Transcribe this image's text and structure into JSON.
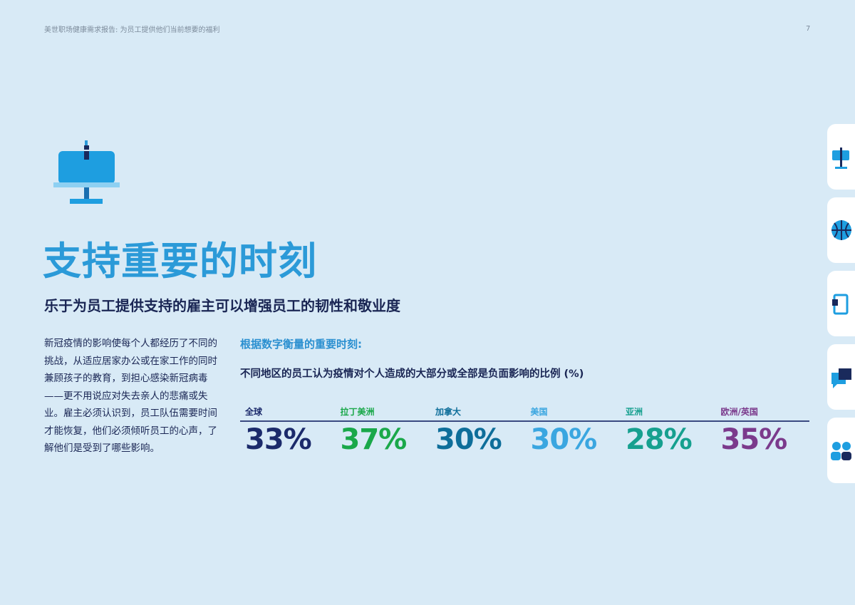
{
  "header": {
    "title": "美世职场健康需求报告: 为员工提供他们当前想要的福利",
    "page_number": "7"
  },
  "title": "支持重要的时刻",
  "subtitle": "乐于为员工提供支持的雇主可以增强员工的韧性和敬业度",
  "body": "新冠疫情的影响使每个人都经历了不同的挑战，从适应居家办公或在家工作的同时兼顾孩子的教育，到担心感染新冠病毒——更不用说应对失去亲人的悲痛或失业。雇主必须认识到，员工队伍需要时间才能恢复，他们必须倾听员工的心声，了解他们是受到了哪些影响。",
  "stats": {
    "heading": "根据数字衡量的重要时刻:",
    "subheading": "不同地区的员工认为疫情对个人造成的大部分或全部是负面影响的比例 (%)",
    "items": [
      {
        "label": "全球",
        "value": "33%",
        "color": "#1b2a6b"
      },
      {
        "label": "拉丁美洲",
        "value": "37%",
        "color": "#1aa84a"
      },
      {
        "label": "加拿大",
        "value": "30%",
        "color": "#0e6e9a"
      },
      {
        "label": "美国",
        "value": "30%",
        "color": "#3aa6e0"
      },
      {
        "label": "亚洲",
        "value": "28%",
        "color": "#16a08f"
      },
      {
        "label": "欧洲/英国",
        "value": "35%",
        "color": "#7b3a8c"
      }
    ]
  }
}
